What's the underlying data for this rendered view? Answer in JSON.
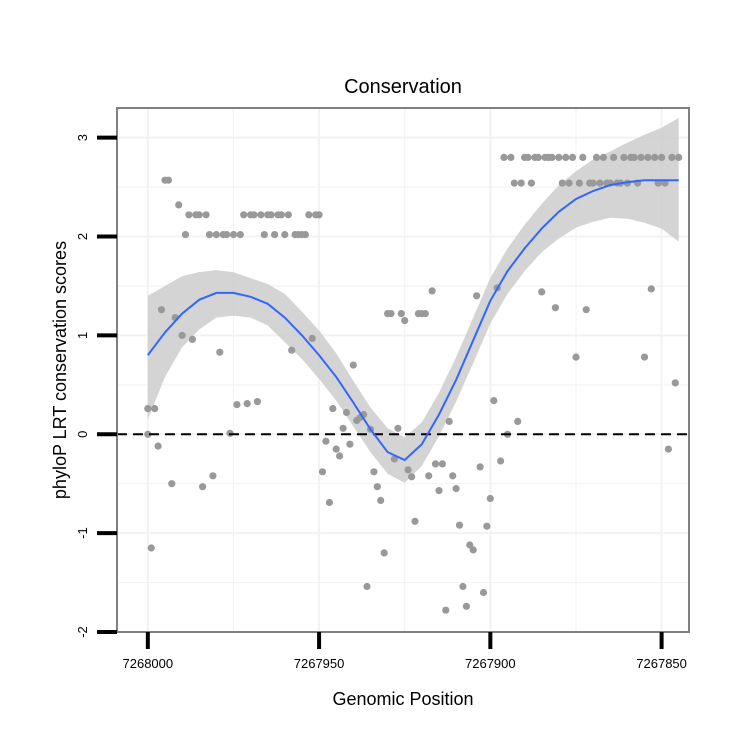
{
  "chart_data": {
    "type": "scatter",
    "title": "Conservation",
    "xlabel": "Genomic Position",
    "ylabel": "phyloP LRT conservation scores",
    "x_reversed": true,
    "xlim": [
      7268009,
      7267842
    ],
    "ylim": [
      -2.0,
      3.3
    ],
    "xticks": [
      7268000,
      7267950,
      7267900,
      7267850
    ],
    "xtick_labels": [
      "7268000",
      "7267950",
      "7267900",
      "7267850"
    ],
    "yticks": [
      -2,
      -1,
      0,
      1,
      2,
      3
    ],
    "ytick_labels": [
      "-2",
      "-1",
      "0",
      "1",
      "2",
      "3"
    ],
    "reference_line": {
      "y": 0,
      "style": "dashed"
    },
    "colors": {
      "points": "#999999",
      "smooth": "#3366ff",
      "band": "#cccccc",
      "grid": "#f2f2f2",
      "frame": "#808080",
      "refline": "#000000"
    },
    "points": [
      {
        "x": 7268000,
        "y": 0.0
      },
      {
        "x": 7268000,
        "y": 0.26
      },
      {
        "x": 7267999,
        "y": -1.15
      },
      {
        "x": 7267998,
        "y": 0.26
      },
      {
        "x": 7267997,
        "y": -0.12
      },
      {
        "x": 7267996,
        "y": 1.26
      },
      {
        "x": 7267995,
        "y": 2.57
      },
      {
        "x": 7267994,
        "y": 2.57
      },
      {
        "x": 7267993,
        "y": -0.5
      },
      {
        "x": 7267992,
        "y": 1.18
      },
      {
        "x": 7267991,
        "y": 2.32
      },
      {
        "x": 7267990,
        "y": 1.0
      },
      {
        "x": 7267989,
        "y": 2.02
      },
      {
        "x": 7267988,
        "y": 2.22
      },
      {
        "x": 7267987,
        "y": 0.96
      },
      {
        "x": 7267986,
        "y": 2.22
      },
      {
        "x": 7267985,
        "y": 2.22
      },
      {
        "x": 7267984,
        "y": -0.53
      },
      {
        "x": 7267983,
        "y": 2.22
      },
      {
        "x": 7267982,
        "y": 2.02
      },
      {
        "x": 7267981,
        "y": -0.42
      },
      {
        "x": 7267980,
        "y": 2.02
      },
      {
        "x": 7267979,
        "y": 0.83
      },
      {
        "x": 7267978,
        "y": 2.02
      },
      {
        "x": 7267977,
        "y": 2.02
      },
      {
        "x": 7267976,
        "y": 0.01
      },
      {
        "x": 7267975,
        "y": 2.02
      },
      {
        "x": 7267974,
        "y": 0.3
      },
      {
        "x": 7267973,
        "y": 2.02
      },
      {
        "x": 7267972,
        "y": 2.22
      },
      {
        "x": 7267971,
        "y": 0.31
      },
      {
        "x": 7267970,
        "y": 2.22
      },
      {
        "x": 7267969,
        "y": 2.22
      },
      {
        "x": 7267968,
        "y": 0.33
      },
      {
        "x": 7267967,
        "y": 2.22
      },
      {
        "x": 7267966,
        "y": 2.02
      },
      {
        "x": 7267965,
        "y": 2.22
      },
      {
        "x": 7267964,
        "y": 2.22
      },
      {
        "x": 7267963,
        "y": 2.02
      },
      {
        "x": 7267962,
        "y": 2.22
      },
      {
        "x": 7267961,
        "y": 2.22
      },
      {
        "x": 7267960,
        "y": 2.02
      },
      {
        "x": 7267959,
        "y": 2.22
      },
      {
        "x": 7267958,
        "y": 0.85
      },
      {
        "x": 7267957,
        "y": 2.02
      },
      {
        "x": 7267956,
        "y": 2.02
      },
      {
        "x": 7267955,
        "y": 2.02
      },
      {
        "x": 7267954,
        "y": 2.02
      },
      {
        "x": 7267953,
        "y": 2.22
      },
      {
        "x": 7267952,
        "y": 0.97
      },
      {
        "x": 7267951,
        "y": 2.22
      },
      {
        "x": 7267950,
        "y": 2.22
      },
      {
        "x": 7267949,
        "y": -0.38
      },
      {
        "x": 7267948,
        "y": -0.07
      },
      {
        "x": 7267947,
        "y": -0.69
      },
      {
        "x": 7267946,
        "y": 0.26
      },
      {
        "x": 7267945,
        "y": -0.15
      },
      {
        "x": 7267944,
        "y": -0.22
      },
      {
        "x": 7267943,
        "y": 0.06
      },
      {
        "x": 7267942,
        "y": 0.22
      },
      {
        "x": 7267941,
        "y": -0.1
      },
      {
        "x": 7267940,
        "y": 0.7
      },
      {
        "x": 7267939,
        "y": 0.14
      },
      {
        "x": 7267938,
        "y": 0.17
      },
      {
        "x": 7267937,
        "y": 0.2
      },
      {
        "x": 7267936,
        "y": -1.54
      },
      {
        "x": 7267935,
        "y": 0.05
      },
      {
        "x": 7267934,
        "y": -0.38
      },
      {
        "x": 7267933,
        "y": -0.53
      },
      {
        "x": 7267932,
        "y": -0.67
      },
      {
        "x": 7267931,
        "y": -1.2
      },
      {
        "x": 7267930,
        "y": 1.22
      },
      {
        "x": 7267929,
        "y": 1.22
      },
      {
        "x": 7267928,
        "y": -0.25
      },
      {
        "x": 7267927,
        "y": 0.06
      },
      {
        "x": 7267926,
        "y": 1.22
      },
      {
        "x": 7267925,
        "y": 1.15
      },
      {
        "x": 7267924,
        "y": -0.36
      },
      {
        "x": 7267923,
        "y": -0.43
      },
      {
        "x": 7267922,
        "y": -0.88
      },
      {
        "x": 7267921,
        "y": 1.22
      },
      {
        "x": 7267920,
        "y": 1.22
      },
      {
        "x": 7267919,
        "y": 1.22
      },
      {
        "x": 7267918,
        "y": -0.42
      },
      {
        "x": 7267917,
        "y": 1.45
      },
      {
        "x": 7267916,
        "y": -0.3
      },
      {
        "x": 7267915,
        "y": -0.57
      },
      {
        "x": 7267914,
        "y": -0.3
      },
      {
        "x": 7267913,
        "y": -1.78
      },
      {
        "x": 7267912,
        "y": 0.13
      },
      {
        "x": 7267911,
        "y": -0.42
      },
      {
        "x": 7267910,
        "y": -0.55
      },
      {
        "x": 7267909,
        "y": -0.92
      },
      {
        "x": 7267908,
        "y": -1.54
      },
      {
        "x": 7267907,
        "y": -1.74
      },
      {
        "x": 7267906,
        "y": -1.12
      },
      {
        "x": 7267905,
        "y": -1.17
      },
      {
        "x": 7267904,
        "y": 1.4
      },
      {
        "x": 7267903,
        "y": -0.33
      },
      {
        "x": 7267902,
        "y": -1.6
      },
      {
        "x": 7267901,
        "y": -0.93
      },
      {
        "x": 7267900,
        "y": -0.65
      },
      {
        "x": 7267899,
        "y": 0.34
      },
      {
        "x": 7267898,
        "y": 1.48
      },
      {
        "x": 7267897,
        "y": -0.27
      },
      {
        "x": 7267896,
        "y": 2.8
      },
      {
        "x": 7267895,
        "y": 0.0
      },
      {
        "x": 7267894,
        "y": 2.8
      },
      {
        "x": 7267893,
        "y": 2.54
      },
      {
        "x": 7267892,
        "y": 0.13
      },
      {
        "x": 7267891,
        "y": 2.54
      },
      {
        "x": 7267890,
        "y": 2.8
      },
      {
        "x": 7267889,
        "y": 2.8
      },
      {
        "x": 7267888,
        "y": 2.54
      },
      {
        "x": 7267887,
        "y": 2.8
      },
      {
        "x": 7267886,
        "y": 2.8
      },
      {
        "x": 7267885,
        "y": 1.44
      },
      {
        "x": 7267884,
        "y": 2.8
      },
      {
        "x": 7267883,
        "y": 2.8
      },
      {
        "x": 7267882,
        "y": 2.8
      },
      {
        "x": 7267881,
        "y": 1.28
      },
      {
        "x": 7267880,
        "y": 2.8
      },
      {
        "x": 7267879,
        "y": 2.54
      },
      {
        "x": 7267878,
        "y": 2.8
      },
      {
        "x": 7267877,
        "y": 2.54
      },
      {
        "x": 7267876,
        "y": 2.8
      },
      {
        "x": 7267875,
        "y": 0.78
      },
      {
        "x": 7267874,
        "y": 2.54
      },
      {
        "x": 7267873,
        "y": 2.8
      },
      {
        "x": 7267872,
        "y": 1.26
      },
      {
        "x": 7267871,
        "y": 2.54
      },
      {
        "x": 7267870,
        "y": 2.54
      },
      {
        "x": 7267869,
        "y": 2.8
      },
      {
        "x": 7267868,
        "y": 2.54
      },
      {
        "x": 7267867,
        "y": 2.8
      },
      {
        "x": 7267866,
        "y": 2.54
      },
      {
        "x": 7267865,
        "y": 2.54
      },
      {
        "x": 7267864,
        "y": 2.8
      },
      {
        "x": 7267863,
        "y": 2.54
      },
      {
        "x": 7267862,
        "y": 2.54
      },
      {
        "x": 7267861,
        "y": 2.8
      },
      {
        "x": 7267860,
        "y": 2.54
      },
      {
        "x": 7267859,
        "y": 2.8
      },
      {
        "x": 7267858,
        "y": 2.8
      },
      {
        "x": 7267857,
        "y": 2.54
      },
      {
        "x": 7267856,
        "y": 2.8
      },
      {
        "x": 7267855,
        "y": 0.78
      },
      {
        "x": 7267854,
        "y": 2.8
      },
      {
        "x": 7267853,
        "y": 1.47
      },
      {
        "x": 7267852,
        "y": 2.8
      },
      {
        "x": 7267851,
        "y": 2.54
      },
      {
        "x": 7267850,
        "y": 2.8
      },
      {
        "x": 7267849,
        "y": 2.54
      },
      {
        "x": 7267848,
        "y": -0.15
      },
      {
        "x": 7267847,
        "y": 2.8
      },
      {
        "x": 7267846,
        "y": 0.52
      },
      {
        "x": 7267845,
        "y": 2.8
      }
    ],
    "smooth_line": {
      "x": [
        7268000,
        7267995,
        7267990,
        7267985,
        7267980,
        7267975,
        7267970,
        7267965,
        7267960,
        7267955,
        7267950,
        7267945,
        7267940,
        7267935,
        7267930,
        7267925,
        7267920,
        7267915,
        7267910,
        7267905,
        7267900,
        7267895,
        7267890,
        7267885,
        7267880,
        7267875,
        7267870,
        7267865,
        7267860,
        7267855,
        7267850,
        7267845
      ],
      "y": [
        0.8,
        1.03,
        1.22,
        1.36,
        1.43,
        1.43,
        1.39,
        1.32,
        1.18,
        1.0,
        0.8,
        0.58,
        0.32,
        0.05,
        -0.18,
        -0.26,
        -0.1,
        0.2,
        0.55,
        0.95,
        1.35,
        1.65,
        1.88,
        2.08,
        2.25,
        2.38,
        2.46,
        2.52,
        2.55,
        2.57,
        2.57,
        2.57
      ],
      "upper": [
        1.4,
        1.5,
        1.6,
        1.64,
        1.66,
        1.64,
        1.58,
        1.52,
        1.42,
        1.24,
        1.05,
        0.82,
        0.54,
        0.27,
        0.06,
        -0.03,
        0.12,
        0.42,
        0.78,
        1.18,
        1.58,
        1.88,
        2.12,
        2.33,
        2.52,
        2.66,
        2.78,
        2.86,
        2.95,
        3.03,
        3.1,
        3.2
      ],
      "lower": [
        0.15,
        0.58,
        0.88,
        1.06,
        1.18,
        1.2,
        1.18,
        1.1,
        0.93,
        0.76,
        0.56,
        0.34,
        0.08,
        -0.18,
        -0.4,
        -0.49,
        -0.32,
        -0.02,
        0.33,
        0.72,
        1.12,
        1.42,
        1.65,
        1.84,
        1.98,
        2.09,
        2.15,
        2.19,
        2.18,
        2.14,
        2.08,
        1.95
      ]
    }
  }
}
